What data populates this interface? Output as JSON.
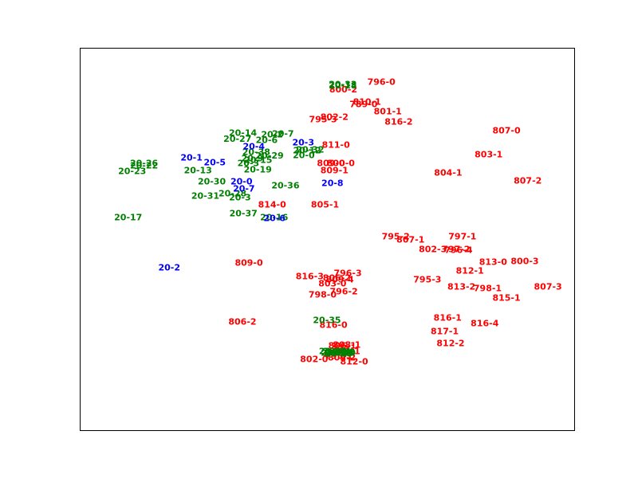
{
  "chart_data": {
    "type": "scatter",
    "title": "",
    "xlabel": "",
    "ylabel": "",
    "xlim": [
      0,
      100
    ],
    "ylim": [
      0,
      100
    ],
    "grid": false,
    "axes_ticks": false,
    "series": [
      {
        "color": "#ff0000",
        "points": [
          {
            "label": "796-0",
            "x": 61.0,
            "y": 91.0
          },
          {
            "label": "800-2",
            "x": 53.3,
            "y": 89.1
          },
          {
            "label": "810-1",
            "x": 58.1,
            "y": 85.8
          },
          {
            "label": "789-0",
            "x": 57.4,
            "y": 85.2
          },
          {
            "label": "801-1",
            "x": 62.3,
            "y": 83.3
          },
          {
            "label": "795-3",
            "x": 49.2,
            "y": 81.2
          },
          {
            "label": "802-2",
            "x": 51.5,
            "y": 81.9
          },
          {
            "label": "816-2",
            "x": 64.5,
            "y": 80.6
          },
          {
            "label": "807-0",
            "x": 86.3,
            "y": 78.3
          },
          {
            "label": "811-0",
            "x": 51.8,
            "y": 74.6
          },
          {
            "label": "803-1",
            "x": 82.7,
            "y": 72.1
          },
          {
            "label": "809-0b",
            "x": 50.8,
            "y": 69.8
          },
          {
            "label": "800-0",
            "x": 52.8,
            "y": 69.8
          },
          {
            "label": "804-1",
            "x": 74.5,
            "y": 67.3
          },
          {
            "label": "809-1",
            "x": 51.5,
            "y": 67.9
          },
          {
            "label": "807-2",
            "x": 90.6,
            "y": 65.2
          },
          {
            "label": "814-0",
            "x": 38.9,
            "y": 59.0
          },
          {
            "label": "805-1",
            "x": 49.6,
            "y": 59.0
          },
          {
            "label": "795-2",
            "x": 63.9,
            "y": 50.6
          },
          {
            "label": "807-1",
            "x": 66.9,
            "y": 49.8
          },
          {
            "label": "797-1",
            "x": 77.4,
            "y": 50.6
          },
          {
            "label": "802-3",
            "x": 71.4,
            "y": 47.3
          },
          {
            "label": "797-2",
            "x": 76.1,
            "y": 47.3
          },
          {
            "label": "796-4",
            "x": 76.6,
            "y": 47.1
          },
          {
            "label": "813-0",
            "x": 83.6,
            "y": 44.0
          },
          {
            "label": "800-3",
            "x": 90.0,
            "y": 44.2
          },
          {
            "label": "812-1",
            "x": 78.9,
            "y": 41.7
          },
          {
            "label": "809-0",
            "x": 34.2,
            "y": 43.8
          },
          {
            "label": "816-3",
            "x": 46.5,
            "y": 40.2
          },
          {
            "label": "796-3",
            "x": 54.2,
            "y": 41.0
          },
          {
            "label": "806-2",
            "x": 52.0,
            "y": 39.8
          },
          {
            "label": "809-4",
            "x": 52.6,
            "y": 39.4
          },
          {
            "label": "803-0",
            "x": 51.1,
            "y": 38.3
          },
          {
            "label": "795-3b",
            "x": 70.3,
            "y": 39.4
          },
          {
            "label": "813-2",
            "x": 77.2,
            "y": 37.5
          },
          {
            "label": "798-1",
            "x": 82.5,
            "y": 37.1
          },
          {
            "label": "807-3",
            "x": 94.7,
            "y": 37.5
          },
          {
            "label": "796-2",
            "x": 53.4,
            "y": 36.3
          },
          {
            "label": "798-0",
            "x": 49.1,
            "y": 35.4
          },
          {
            "label": "815-1",
            "x": 86.3,
            "y": 34.6
          },
          {
            "label": "806-2",
            "x": 32.9,
            "y": 28.3
          },
          {
            "label": "816-0",
            "x": 51.3,
            "y": 27.5
          },
          {
            "label": "816-1",
            "x": 74.4,
            "y": 29.4
          },
          {
            "label": "816-4",
            "x": 81.9,
            "y": 27.9
          },
          {
            "label": "817-1",
            "x": 73.8,
            "y": 25.8
          },
          {
            "label": "812-2",
            "x": 75.0,
            "y": 22.7
          },
          {
            "label": "808-1",
            "x": 54.0,
            "y": 22.3
          },
          {
            "label": "806-1",
            "x": 53.1,
            "y": 22.1
          },
          {
            "label": "801-1b",
            "x": 53.9,
            "y": 20.6
          },
          {
            "label": "795-1",
            "x": 52.4,
            "y": 19.4
          },
          {
            "label": "809-2",
            "x": 53.0,
            "y": 19.0
          },
          {
            "label": "802-0",
            "x": 47.4,
            "y": 18.5
          },
          {
            "label": "812-0",
            "x": 55.5,
            "y": 17.9
          }
        ]
      },
      {
        "color": "#008000",
        "points": [
          {
            "label": "20-33",
            "x": 53.2,
            "y": 90.4
          },
          {
            "label": "20-18",
            "x": 53.2,
            "y": 90.1
          },
          {
            "label": "20-14",
            "x": 33.0,
            "y": 77.7
          },
          {
            "label": "20-27",
            "x": 31.9,
            "y": 76.1
          },
          {
            "label": "20-2",
            "x": 38.9,
            "y": 77.3
          },
          {
            "label": "20-7",
            "x": 41.1,
            "y": 77.5
          },
          {
            "label": "20-6",
            "x": 37.8,
            "y": 75.8
          },
          {
            "label": "20-38",
            "x": 35.7,
            "y": 72.7
          },
          {
            "label": "20-29",
            "x": 38.4,
            "y": 71.8
          },
          {
            "label": "20-9",
            "x": 34.9,
            "y": 71.0
          },
          {
            "label": "20-15",
            "x": 36.1,
            "y": 70.6
          },
          {
            "label": "20-3",
            "x": 34.1,
            "y": 69.8
          },
          {
            "label": "20-32",
            "x": 46.6,
            "y": 73.3
          },
          {
            "label": "20-12",
            "x": 46.0,
            "y": 73.1
          },
          {
            "label": "20-0",
            "x": 45.3,
            "y": 71.9
          },
          {
            "label": "20-26",
            "x": 13.0,
            "y": 69.8
          },
          {
            "label": "20-22",
            "x": 13.0,
            "y": 69.2
          },
          {
            "label": "20-23",
            "x": 10.6,
            "y": 67.7
          },
          {
            "label": "20-13",
            "x": 23.9,
            "y": 67.9
          },
          {
            "label": "20-19",
            "x": 36.0,
            "y": 68.1
          },
          {
            "label": "20-30",
            "x": 26.7,
            "y": 65.0
          },
          {
            "label": "20-36",
            "x": 41.6,
            "y": 64.0
          },
          {
            "label": "20-31",
            "x": 25.4,
            "y": 61.2
          },
          {
            "label": "20-28",
            "x": 30.9,
            "y": 61.9
          },
          {
            "label": "20-3",
            "x": 32.4,
            "y": 60.8
          },
          {
            "label": "20-37",
            "x": 33.1,
            "y": 56.7
          },
          {
            "label": "20-16",
            "x": 39.3,
            "y": 55.6
          },
          {
            "label": "20-17",
            "x": 9.8,
            "y": 55.6
          },
          {
            "label": "20-35",
            "x": 50.0,
            "y": 28.8
          },
          {
            "label": "20-20",
            "x": 51.2,
            "y": 20.6
          },
          {
            "label": "20-21",
            "x": 51.6,
            "y": 20.2
          },
          {
            "label": "20-24",
            "x": 52.0,
            "y": 20.6
          },
          {
            "label": "20-25",
            "x": 52.4,
            "y": 20.0
          },
          {
            "label": "20-34",
            "x": 52.6,
            "y": 20.4
          },
          {
            "label": "20-39",
            "x": 53.0,
            "y": 20.2
          },
          {
            "label": "20-8b",
            "x": 53.5,
            "y": 20.4
          },
          {
            "label": "20-10",
            "x": 52.2,
            "y": 20.2
          }
        ]
      },
      {
        "color": "#0000ff",
        "points": [
          {
            "label": "20-3",
            "x": 45.2,
            "y": 75.2
          },
          {
            "label": "20-4",
            "x": 35.2,
            "y": 74.2
          },
          {
            "label": "20-1",
            "x": 22.6,
            "y": 71.3
          },
          {
            "label": "20-5",
            "x": 27.3,
            "y": 70.0
          },
          {
            "label": "20-0",
            "x": 32.7,
            "y": 65.0
          },
          {
            "label": "20-8",
            "x": 51.1,
            "y": 64.6
          },
          {
            "label": "20-7",
            "x": 33.2,
            "y": 63.1
          },
          {
            "label": "20-6",
            "x": 39.4,
            "y": 55.4
          },
          {
            "label": "20-2",
            "x": 18.1,
            "y": 42.5
          }
        ]
      }
    ]
  }
}
